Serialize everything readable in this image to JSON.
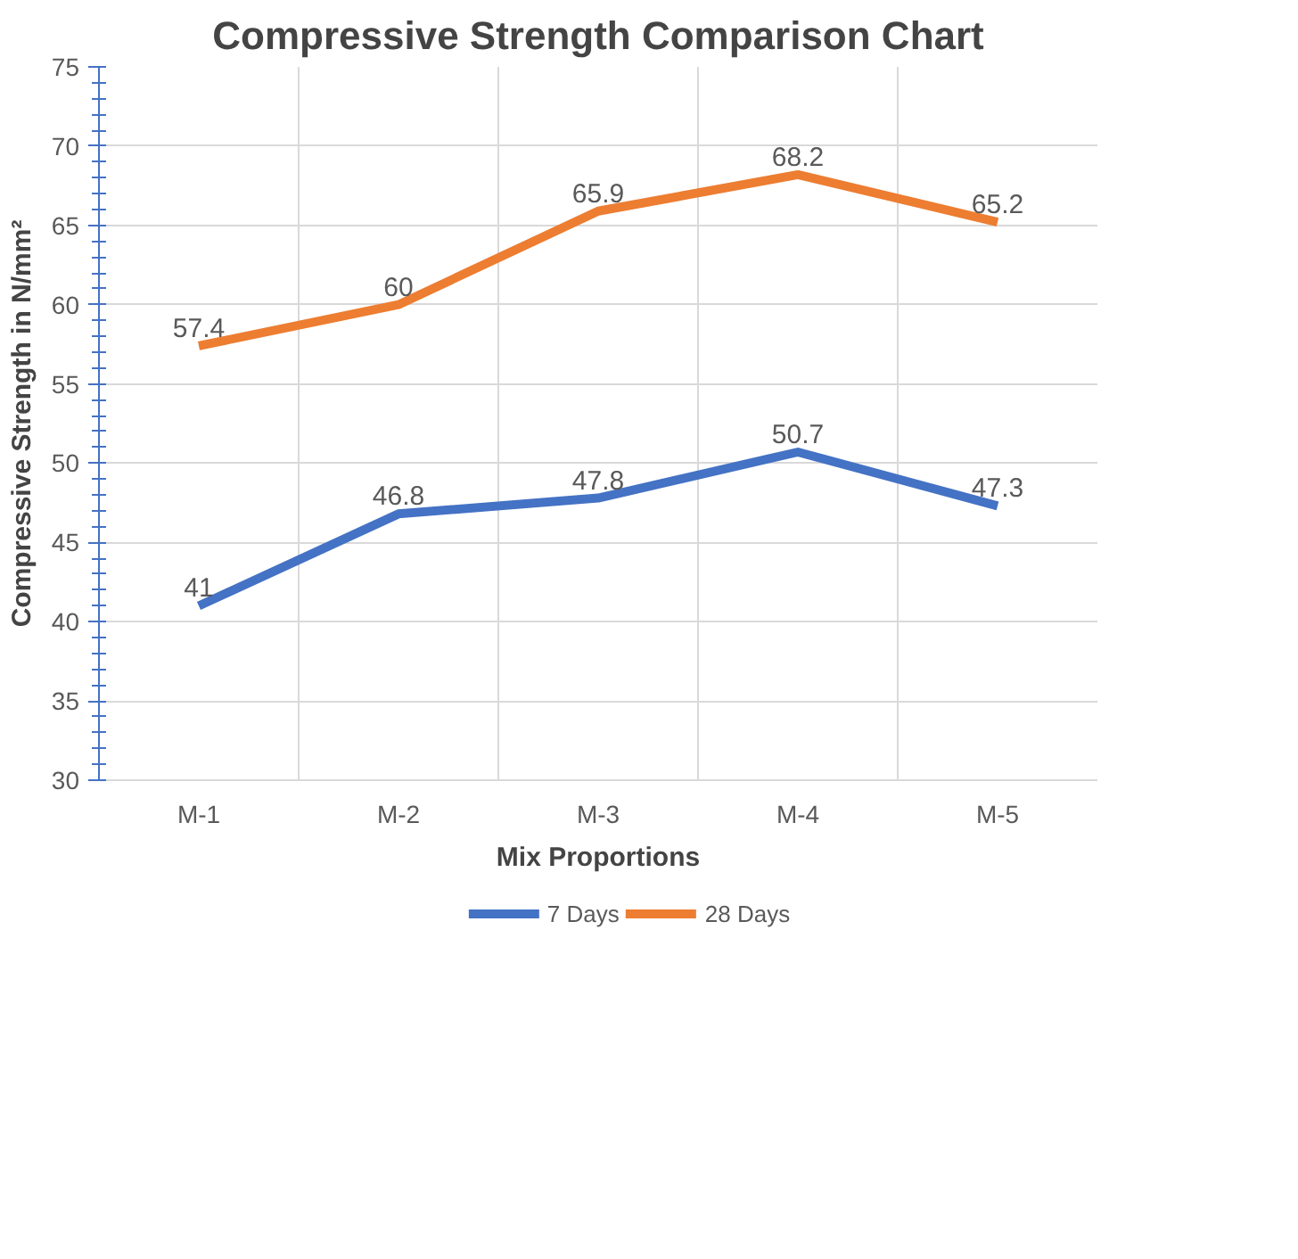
{
  "chart_data": {
    "type": "line",
    "title": "Compressive Strength Comparison Chart",
    "xlabel": "Mix Proportions",
    "ylabel": "Compressive Strength in N/mm²",
    "categories": [
      "M-1",
      "M-2",
      "M-3",
      "M-4",
      "M-5"
    ],
    "series": [
      {
        "name": "7 Days",
        "color": "#4472c4",
        "values": [
          41,
          46.8,
          47.8,
          50.7,
          47.3
        ]
      },
      {
        "name": "28 Days",
        "color": "#ed7d31",
        "values": [
          57.4,
          60,
          65.9,
          68.2,
          65.2
        ]
      }
    ],
    "ylim": [
      30,
      75
    ],
    "yticks": [
      30,
      35,
      40,
      45,
      50,
      55,
      60,
      65,
      70,
      75
    ],
    "grid": true,
    "legend": "bottom",
    "data_labels": true,
    "marker": "none",
    "line_style": "solid"
  }
}
